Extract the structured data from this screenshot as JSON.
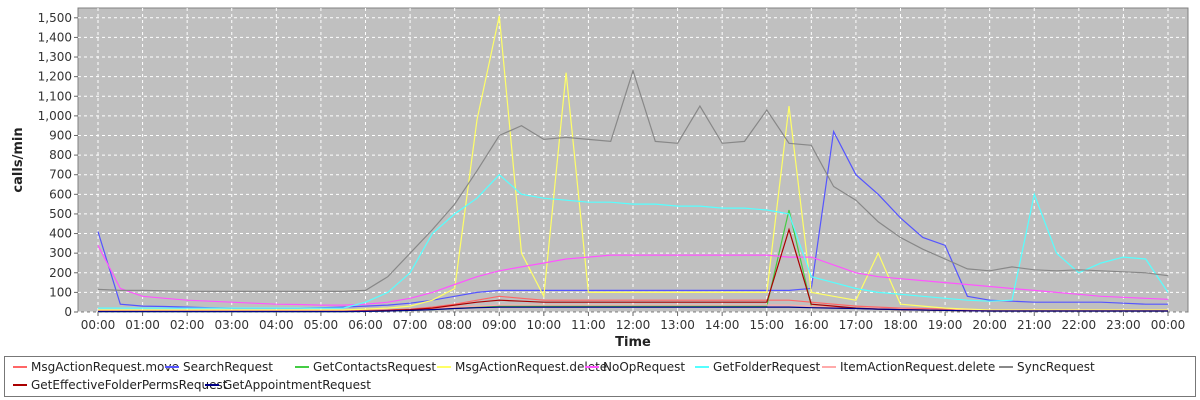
{
  "chart_data": {
    "type": "line",
    "title": "",
    "xlabel": "Time",
    "ylabel": "calls/min",
    "ylim": [
      0,
      1550
    ],
    "yticks": [
      0,
      100,
      200,
      300,
      400,
      500,
      600,
      700,
      800,
      900,
      1000,
      1100,
      1200,
      1300,
      1400,
      1500
    ],
    "ytick_labels": [
      "0",
      "100",
      "200",
      "300",
      "400",
      "500",
      "600",
      "700",
      "800",
      "900",
      "1,000",
      "1,100",
      "1,200",
      "1,300",
      "1,400",
      "1,500"
    ],
    "xlim": [
      0,
      24
    ],
    "xtick_labels": [
      "00:00",
      "01:00",
      "02:00",
      "03:00",
      "04:00",
      "05:00",
      "06:00",
      "07:00",
      "08:00",
      "09:00",
      "10:00",
      "11:00",
      "12:00",
      "13:00",
      "14:00",
      "15:00",
      "16:00",
      "17:00",
      "18:00",
      "19:00",
      "20:00",
      "21:00",
      "22:00",
      "23:00",
      "00:00"
    ],
    "x": [
      0,
      0.5,
      1,
      1.5,
      2,
      2.5,
      3,
      3.5,
      4,
      4.5,
      5,
      5.5,
      6,
      6.5,
      7,
      7.5,
      8,
      8.5,
      9,
      9.5,
      10,
      10.5,
      11,
      11.5,
      12,
      12.5,
      13,
      13.5,
      14,
      14.5,
      15,
      15.5,
      16,
      16.5,
      17,
      17.5,
      18,
      18.5,
      19,
      19.5,
      20,
      20.5,
      21,
      21.5,
      22,
      22.5,
      23,
      23.5,
      24
    ],
    "grid": true,
    "legend_position": "bottom",
    "background": "#c0c0c0",
    "series": [
      {
        "name": "MsgActionRequest.move",
        "color": "#ff6666",
        "values": [
          5,
          5,
          5,
          5,
          5,
          5,
          5,
          5,
          5,
          5,
          5,
          5,
          8,
          10,
          15,
          25,
          40,
          60,
          80,
          70,
          60,
          60,
          60,
          60,
          60,
          60,
          60,
          60,
          60,
          60,
          60,
          60,
          50,
          40,
          30,
          25,
          20,
          18,
          15,
          12,
          10,
          10,
          10,
          10,
          10,
          10,
          10,
          10,
          10
        ]
      },
      {
        "name": "SearchRequest",
        "color": "#5555ff",
        "values": [
          410,
          40,
          30,
          28,
          25,
          22,
          20,
          20,
          20,
          20,
          22,
          25,
          30,
          35,
          45,
          60,
          80,
          100,
          110,
          110,
          110,
          110,
          110,
          110,
          110,
          110,
          110,
          110,
          110,
          110,
          110,
          110,
          120,
          920,
          700,
          600,
          480,
          380,
          340,
          80,
          60,
          55,
          50,
          50,
          50,
          50,
          45,
          40,
          40
        ]
      },
      {
        "name": "GetContactsRequest",
        "color": "#44cc44",
        "values": [
          2,
          2,
          2,
          2,
          2,
          2,
          2,
          2,
          2,
          2,
          2,
          2,
          3,
          5,
          8,
          12,
          18,
          25,
          30,
          30,
          30,
          30,
          30,
          30,
          30,
          30,
          30,
          30,
          30,
          30,
          30,
          520,
          30,
          25,
          20,
          15,
          12,
          10,
          8,
          6,
          5,
          5,
          5,
          5,
          5,
          5,
          5,
          5,
          5
        ]
      },
      {
        "name": "MsgActionRequest.delete",
        "color": "#ffff66",
        "values": [
          10,
          10,
          10,
          10,
          10,
          10,
          10,
          10,
          10,
          10,
          10,
          10,
          15,
          20,
          30,
          60,
          120,
          980,
          1510,
          300,
          80,
          1220,
          100,
          100,
          100,
          100,
          100,
          100,
          100,
          100,
          100,
          1050,
          100,
          80,
          60,
          300,
          40,
          30,
          20,
          15,
          10,
          10,
          10,
          10,
          10,
          10,
          10,
          10,
          10
        ]
      },
      {
        "name": "NoOpRequest",
        "color": "#ff55ff",
        "values": [
          340,
          120,
          80,
          70,
          60,
          55,
          50,
          45,
          40,
          38,
          35,
          35,
          40,
          50,
          70,
          100,
          140,
          180,
          210,
          230,
          250,
          270,
          280,
          290,
          290,
          290,
          290,
          290,
          290,
          290,
          290,
          280,
          280,
          240,
          200,
          180,
          170,
          160,
          150,
          140,
          130,
          120,
          110,
          100,
          90,
          80,
          75,
          70,
          65
        ]
      },
      {
        "name": "GetFolderRequest",
        "color": "#55ffff",
        "values": [
          20,
          20,
          20,
          20,
          20,
          20,
          20,
          20,
          20,
          20,
          20,
          20,
          50,
          100,
          200,
          400,
          500,
          580,
          700,
          600,
          580,
          570,
          560,
          560,
          550,
          550,
          540,
          540,
          530,
          530,
          520,
          500,
          180,
          150,
          120,
          100,
          90,
          80,
          70,
          60,
          55,
          60,
          600,
          300,
          200,
          250,
          280,
          270,
          100
        ]
      },
      {
        "name": "ItemActionRequest.delete",
        "color": "#ffaaaa",
        "values": [
          5,
          5,
          5,
          5,
          5,
          5,
          5,
          5,
          5,
          5,
          5,
          5,
          6,
          8,
          12,
          18,
          25,
          30,
          35,
          35,
          35,
          35,
          35,
          35,
          35,
          35,
          35,
          35,
          35,
          35,
          35,
          35,
          30,
          25,
          20,
          18,
          15,
          12,
          10,
          8,
          6,
          6,
          6,
          6,
          6,
          6,
          6,
          6,
          6
        ]
      },
      {
        "name": "SyncRequest",
        "color": "#888888",
        "values": [
          115,
          110,
          110,
          108,
          105,
          105,
          105,
          105,
          105,
          105,
          105,
          105,
          110,
          180,
          300,
          420,
          550,
          720,
          900,
          950,
          880,
          890,
          880,
          870,
          1230,
          870,
          860,
          1050,
          860,
          870,
          1030,
          860,
          850,
          640,
          570,
          460,
          380,
          320,
          270,
          220,
          210,
          230,
          215,
          210,
          215,
          210,
          205,
          200,
          185
        ]
      },
      {
        "name": "GetEffectiveFolderPermsRequest",
        "color": "#aa0000",
        "values": [
          3,
          3,
          3,
          3,
          3,
          3,
          3,
          3,
          3,
          3,
          3,
          3,
          5,
          8,
          12,
          20,
          35,
          50,
          60,
          55,
          50,
          50,
          50,
          50,
          50,
          50,
          50,
          50,
          50,
          50,
          50,
          420,
          40,
          30,
          20,
          15,
          12,
          10,
          8,
          6,
          5,
          5,
          5,
          5,
          5,
          5,
          5,
          5,
          5
        ]
      },
      {
        "name": "GetAppointmentRequest",
        "color": "#000088",
        "values": [
          2,
          2,
          2,
          2,
          2,
          2,
          2,
          2,
          2,
          2,
          2,
          2,
          3,
          5,
          8,
          12,
          18,
          22,
          25,
          25,
          25,
          25,
          25,
          25,
          25,
          25,
          25,
          25,
          25,
          25,
          25,
          25,
          22,
          20,
          18,
          15,
          12,
          10,
          8,
          6,
          5,
          5,
          5,
          5,
          5,
          5,
          5,
          5,
          5
        ]
      }
    ]
  }
}
